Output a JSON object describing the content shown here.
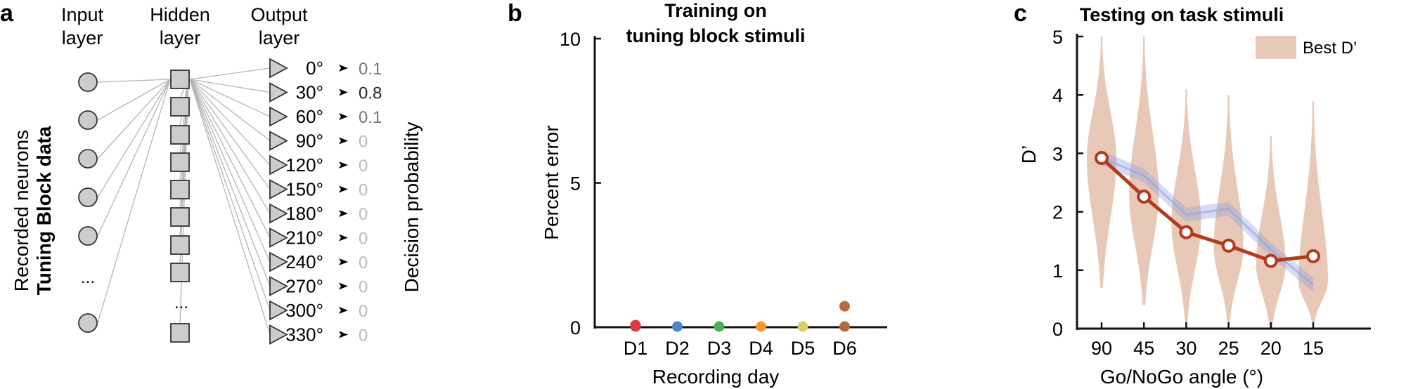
{
  "panel_a": {
    "letter": "a",
    "header_input": [
      "Input",
      "layer"
    ],
    "header_hidden": [
      "Hidden",
      "layer"
    ],
    "header_output": [
      "Output",
      "layer"
    ],
    "left_label_1": "Recorded neurons",
    "left_label_2": "Tuning Block data",
    "ellipsis": "...",
    "right_label": "Decision probability",
    "outputs": [
      {
        "angle": "0°",
        "prob": "0.1"
      },
      {
        "angle": "30°",
        "prob": "0.8"
      },
      {
        "angle": "60°",
        "prob": "0.1"
      },
      {
        "angle": "90°",
        "prob": "0"
      },
      {
        "angle": "120°",
        "prob": "0"
      },
      {
        "angle": "150°",
        "prob": "0"
      },
      {
        "angle": "180°",
        "prob": "0"
      },
      {
        "angle": "210°",
        "prob": "0"
      },
      {
        "angle": "240°",
        "prob": "0"
      },
      {
        "angle": "270°",
        "prob": "0"
      },
      {
        "angle": "300°",
        "prob": "0"
      },
      {
        "angle": "330°",
        "prob": "0"
      }
    ],
    "colors": {
      "node_fill": "#cccccc",
      "node_stroke": "#333333",
      "connection": "#b5b5b5",
      "prob_high": "#222222",
      "prob_mid": "#777777",
      "prob_low": "#bbbbbb"
    }
  },
  "chart_data": [
    {
      "panel": "b",
      "type": "scatter",
      "title": "Training on tuning block stimuli",
      "title_lines": [
        "Training on",
        "tuning block stimuli"
      ],
      "xlabel": "Recording day",
      "ylabel": "Percent error",
      "categories": [
        "D1",
        "D2",
        "D3",
        "D4",
        "D5",
        "D6"
      ],
      "ylim": [
        0,
        10
      ],
      "yticks": [
        0,
        5,
        10
      ],
      "points": [
        {
          "x": "D1",
          "y": 0,
          "color": "#e03a3a"
        },
        {
          "x": "D1",
          "y": 0.05,
          "color": "#e03a3a"
        },
        {
          "x": "D2",
          "y": 0,
          "color": "#4b86c6"
        },
        {
          "x": "D3",
          "y": 0,
          "color": "#4caf50"
        },
        {
          "x": "D4",
          "y": 0,
          "color": "#f39a2b"
        },
        {
          "x": "D5",
          "y": 0,
          "color": "#d8d060"
        },
        {
          "x": "D6",
          "y": 0,
          "color": "#b36a3c"
        },
        {
          "x": "D6",
          "y": 0.7,
          "color": "#b36a3c"
        }
      ],
      "grid": false
    },
    {
      "panel": "c",
      "type": "line",
      "title": "Testing on task stimuli",
      "xlabel": "Go/NoGo angle (°)",
      "ylabel": "D’",
      "categories": [
        "90",
        "45",
        "30",
        "25",
        "20",
        "15"
      ],
      "ylim": [
        0,
        5
      ],
      "yticks": [
        0,
        1,
        2,
        3,
        4,
        5
      ],
      "legend": {
        "label": "Best D’",
        "placement": "top-right",
        "color": "#e8c9b8"
      },
      "violins": [
        {
          "category": "90",
          "min": 0.7,
          "max": 5.0,
          "mode": 2.9
        },
        {
          "category": "45",
          "min": 0.4,
          "max": 5.0,
          "mode": 2.3
        },
        {
          "category": "30",
          "min": 0.1,
          "max": 4.1,
          "mode": 1.8
        },
        {
          "category": "25",
          "min": 0.1,
          "max": 4.0,
          "mode": 1.4
        },
        {
          "category": "20",
          "min": 0.0,
          "max": 3.3,
          "mode": 1.1
        },
        {
          "category": "15",
          "min": 0.1,
          "max": 3.9,
          "mode": 0.8
        }
      ],
      "series": [
        {
          "values": [
            2.92,
            2.26,
            1.65,
            1.42,
            1.16,
            1.24
          ],
          "color": "#b43a1e"
        },
        {
          "values": [
            2.92,
            2.62,
            1.95,
            2.05,
            1.35,
            0.75
          ],
          "band": [
            0.12,
            0.12,
            0.12,
            0.12,
            0.12,
            0.12
          ],
          "color": "#8fa0dc"
        }
      ],
      "grid": false
    }
  ]
}
